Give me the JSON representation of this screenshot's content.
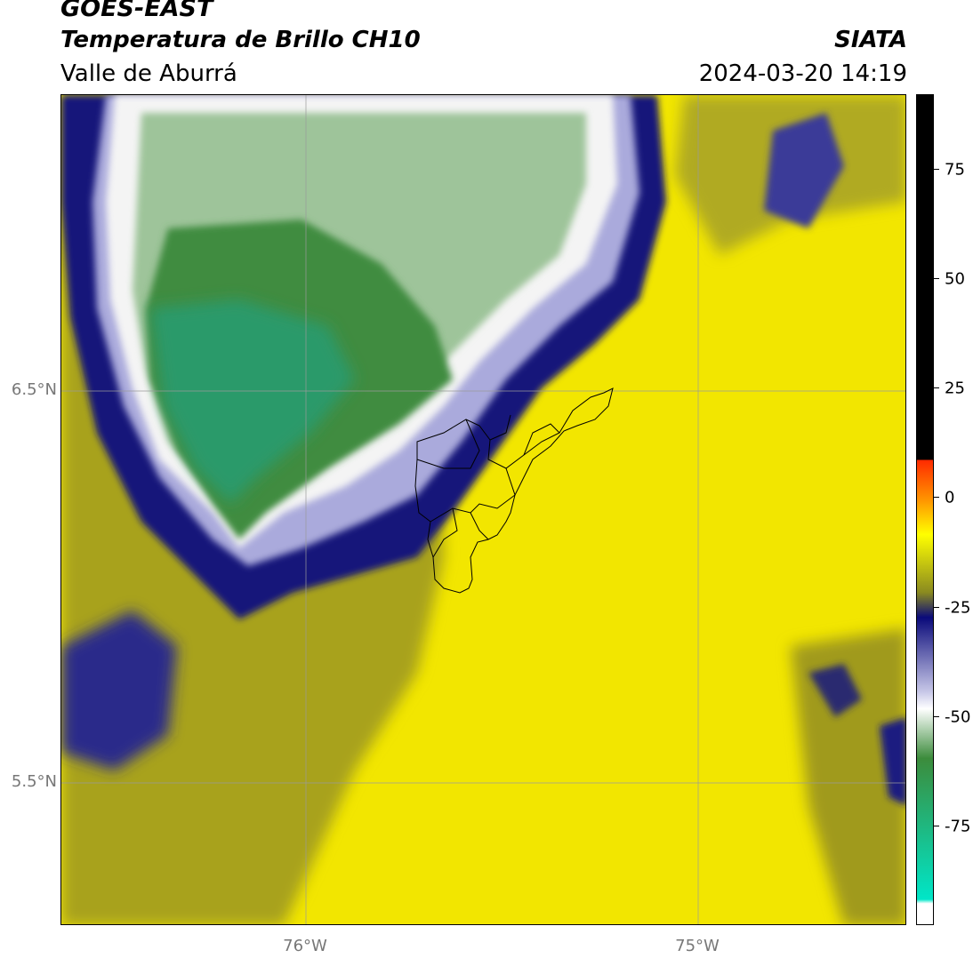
{
  "header": {
    "title": "GOES-EAST",
    "subtitle": "Temperatura de Brillo CH10",
    "region": "Valle de Aburrá",
    "organization": "SIATA",
    "datetime": "2024-03-20 14:19"
  },
  "map": {
    "lat_ticks": [
      {
        "label": "6.5°N",
        "value": 6.5
      },
      {
        "label": "5.5°N",
        "value": 5.5
      }
    ],
    "lon_ticks": [
      {
        "label": "76°W",
        "value": -76.0
      },
      {
        "label": "75°W",
        "value": -75.0
      }
    ],
    "gridlines": true
  },
  "colorbar": {
    "ticks": [
      "75",
      "50",
      "25",
      "0",
      "-25",
      "-50",
      "-75"
    ],
    "palette": {
      "black": "#000000",
      "red": "#ff2a00",
      "orange": "#ff9900",
      "yellow": "#ffff00",
      "olive": "#8a8a20",
      "navy": "#0a0a7a",
      "lavender": "#c8c8e8",
      "white": "#ffffff",
      "green": "#3c8c3c",
      "teal": "#00e6c8"
    }
  }
}
